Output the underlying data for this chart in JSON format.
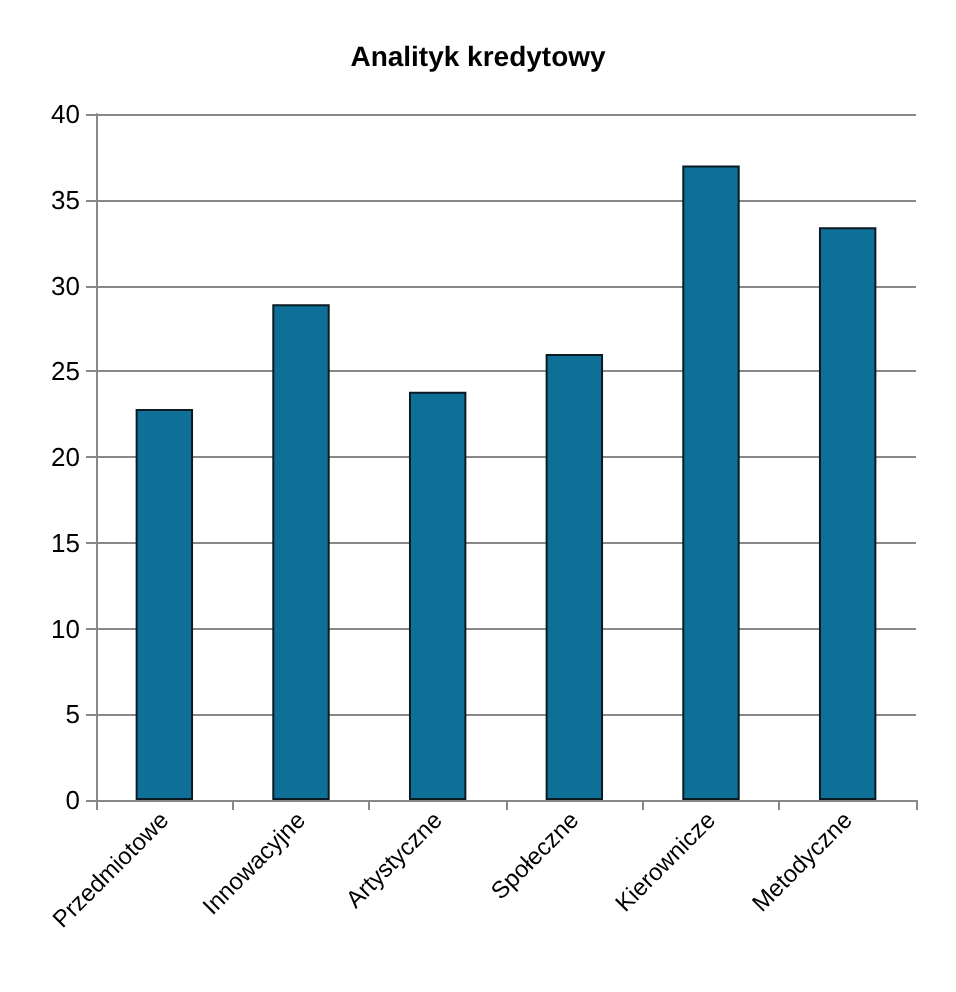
{
  "chart_data": {
    "type": "bar",
    "title": "Analityk kredytowy",
    "categories": [
      "Przedmiotowe",
      "Innowacyjne",
      "Artystyczne",
      "Społeczne",
      "Kierownicze",
      "Metodyczne"
    ],
    "values": [
      22.8,
      28.9,
      23.8,
      26,
      37,
      33.4
    ],
    "color": "#0e6f97",
    "ylim": [
      0,
      40
    ],
    "yticks": [
      0,
      5,
      10,
      15,
      20,
      25,
      30,
      35,
      40
    ],
    "grid": "y"
  }
}
